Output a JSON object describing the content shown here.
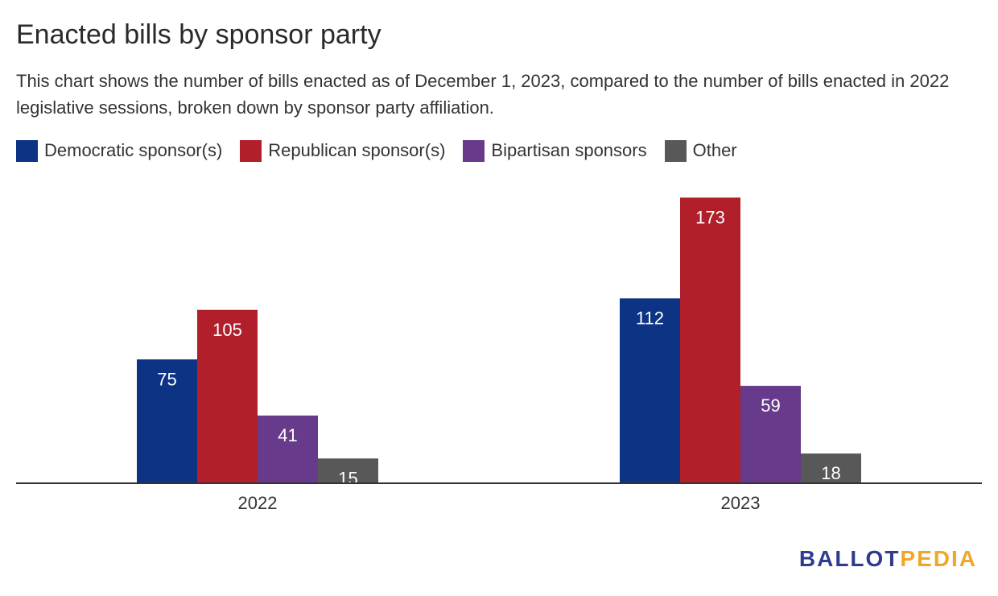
{
  "title": "Enacted bills by sponsor party",
  "subtitle": "This chart shows the number of bills enacted as of December 1, 2023, compared to the number of bills enacted in 2022 legislative sessions, broken down by sponsor party affiliation.",
  "logo": {
    "part1": "BALLOT",
    "part2": "PEDIA"
  },
  "chart_data": {
    "type": "bar",
    "title": "Enacted bills by sponsor party",
    "xlabel": "",
    "ylabel": "",
    "ylim": [
      0,
      185
    ],
    "grid": false,
    "legend_position": "top-left",
    "categories": [
      "2022",
      "2023"
    ],
    "series": [
      {
        "name": "Democratic sponsor(s)",
        "color": "#0d3384",
        "values": [
          75,
          112
        ]
      },
      {
        "name": "Republican sponsor(s)",
        "color": "#b01f2a",
        "values": [
          105,
          173
        ]
      },
      {
        "name": "Bipartisan sponsors",
        "color": "#673a8c",
        "values": [
          41,
          59
        ]
      },
      {
        "name": "Other",
        "color": "#585858",
        "values": [
          15,
          18
        ]
      }
    ]
  }
}
